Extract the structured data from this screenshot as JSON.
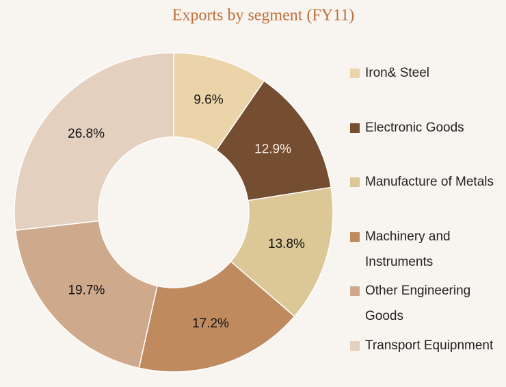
{
  "chart_data": {
    "type": "donut",
    "title": "Exports by segment (FY11)",
    "categories": [
      "Iron& Steel",
      "Electronic Goods",
      "Manufacture of Metals",
      "Machinery and Instruments",
      "Other Engineering Goods",
      "Transport Equipnment"
    ],
    "values": [
      9.6,
      12.9,
      13.8,
      17.2,
      19.7,
      26.8
    ],
    "value_labels": [
      "9.6%",
      "12.9%",
      "13.8%",
      "17.2%",
      "19.7%",
      "26.8%"
    ],
    "colors": [
      "#ebd4a9",
      "#754d30",
      "#dcc796",
      "#c08a5f",
      "#cfa98c",
      "#e4d0bf"
    ],
    "legend": "right"
  }
}
